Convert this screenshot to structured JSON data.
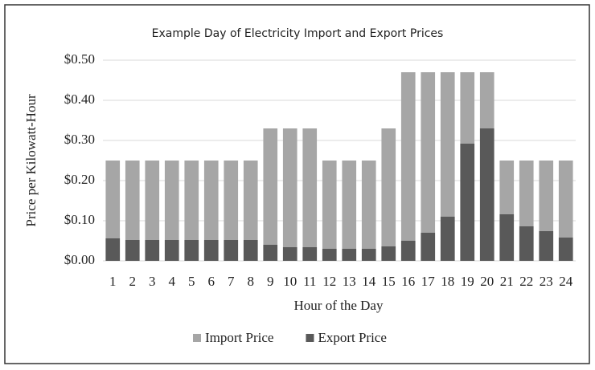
{
  "chart_data": {
    "type": "bar",
    "barmode": "overlay",
    "title": "Example Day of Electricity  Import and Export Prices",
    "x_label": "Hour of the Day",
    "y_label": "Price per Kilowatt-Hour",
    "categories": [
      "1",
      "2",
      "3",
      "4",
      "5",
      "6",
      "7",
      "8",
      "9",
      "10",
      "11",
      "12",
      "13",
      "14",
      "15",
      "16",
      "17",
      "18",
      "19",
      "20",
      "21",
      "22",
      "23",
      "24"
    ],
    "series": [
      {
        "name": "Import Price",
        "color": "#a6a6a6",
        "values": [
          0.25,
          0.25,
          0.25,
          0.25,
          0.25,
          0.25,
          0.25,
          0.25,
          0.33,
          0.33,
          0.33,
          0.25,
          0.25,
          0.25,
          0.33,
          0.47,
          0.47,
          0.47,
          0.47,
          0.47,
          0.25,
          0.25,
          0.25,
          0.25
        ]
      },
      {
        "name": "Export Price",
        "color": "#595959",
        "values": [
          0.056,
          0.052,
          0.052,
          0.052,
          0.052,
          0.052,
          0.052,
          0.052,
          0.04,
          0.034,
          0.034,
          0.03,
          0.03,
          0.03,
          0.036,
          0.05,
          0.07,
          0.11,
          0.292,
          0.33,
          0.116,
          0.086,
          0.074,
          0.058
        ]
      }
    ],
    "ylim": [
      0,
      0.5
    ],
    "yticks": [
      {
        "value": 0,
        "label": "$0.00"
      },
      {
        "value": 0.1,
        "label": "$0.10"
      },
      {
        "value": 0.2,
        "label": "$0.20"
      },
      {
        "value": 0.3,
        "label": "$0.30"
      },
      {
        "value": 0.4,
        "label": "$0.40"
      },
      {
        "value": 0.5,
        "label": "$0.50"
      }
    ],
    "grid": true,
    "legend": "bottom"
  }
}
